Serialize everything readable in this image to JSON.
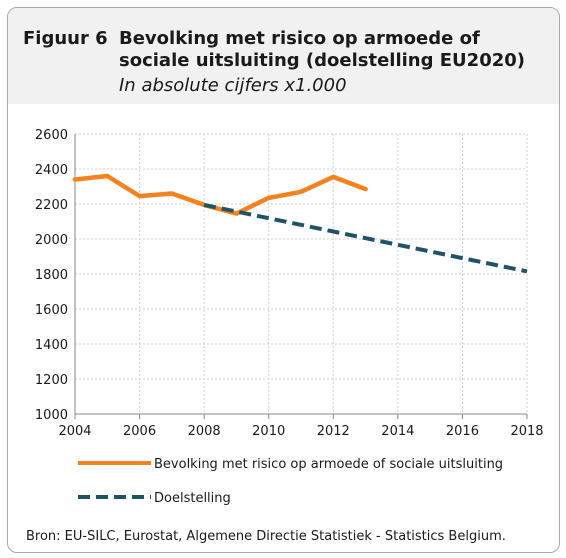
{
  "figure": {
    "label": "Figuur 6",
    "title": "Bevolking met risico op armoede of sociale uitsluiting (doelstelling EU2020)",
    "subtitle": "In absolute cijfers  x1.000"
  },
  "source": "Bron: EU-SILC, Eurostat, Algemene Directie Statistiek - Statistics Belgium.",
  "colors": {
    "series_actual": "#f5821f",
    "series_target": "#1f5466",
    "grid": "#d0d0d0",
    "header_bg": "#f1f1f1"
  },
  "chart_data": {
    "type": "line",
    "title": "",
    "xlabel": "",
    "ylabel": "",
    "xlim": [
      2004,
      2018
    ],
    "ylim": [
      1000,
      2600
    ],
    "xticks": [
      2004,
      2006,
      2008,
      2010,
      2012,
      2014,
      2016,
      2018
    ],
    "yticks": [
      1000,
      1200,
      1400,
      1600,
      1800,
      2000,
      2200,
      2400,
      2600
    ],
    "grid": true,
    "legend_position": "bottom",
    "series": [
      {
        "name": "Bevolking met risico op armoede of sociale uitsluiting",
        "style": "solid",
        "color": "#f5821f",
        "x": [
          2004,
          2005,
          2006,
          2007,
          2008,
          2009,
          2010,
          2011,
          2012,
          2013
        ],
        "y": [
          2340,
          2360,
          2245,
          2260,
          2195,
          2145,
          2235,
          2270,
          2355,
          2285
        ]
      },
      {
        "name": "Doelstelling",
        "style": "dashed",
        "color": "#1f5466",
        "x": [
          2008,
          2018
        ],
        "y": [
          2195,
          1815
        ]
      }
    ]
  }
}
